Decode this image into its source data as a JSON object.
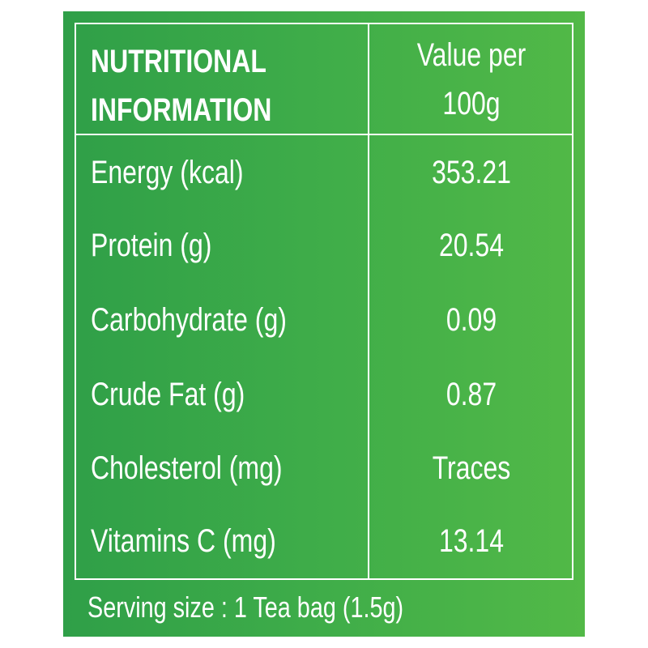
{
  "table": {
    "header": {
      "left": [
        "NUTRITIONAL",
        "INFORMATION"
      ],
      "right": [
        "Value per",
        "100g"
      ]
    },
    "rows": [
      [
        "Energy (kcal)",
        "353.21"
      ],
      [
        "Protein (g)",
        "20.54"
      ],
      [
        "Carbohydrate (g)",
        "0.09"
      ],
      [
        "Crude Fat (g)",
        "0.87"
      ],
      [
        "Cholesterol (mg)",
        "Traces"
      ],
      [
        "Vitamins C (mg)",
        "13.14"
      ]
    ],
    "footer": "Serving size : 1 Tea bag (1.5g)"
  }
}
